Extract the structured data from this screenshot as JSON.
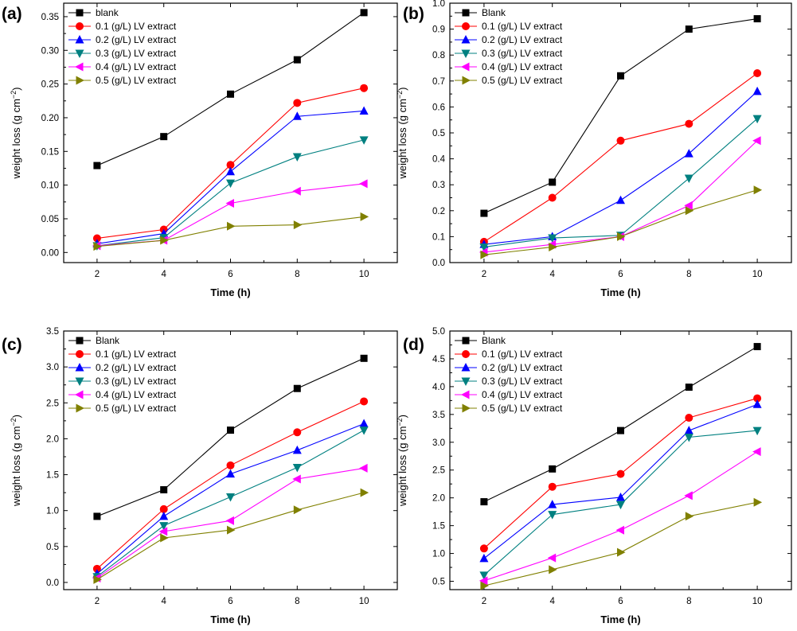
{
  "figure": {
    "panels": [
      "(a)",
      "(b)",
      "(c)",
      "(d)"
    ]
  },
  "chart_data": [
    {
      "type": "line",
      "panel_label": "(a)",
      "xlabel": "Time (h)",
      "ylabel_main": "weight loss (g cm",
      "ylabel_sup": "−2",
      "ylabel_close": ")",
      "x": [
        2,
        4,
        6,
        8,
        10
      ],
      "xticks": [
        "2",
        "4",
        "6",
        "8",
        "10"
      ],
      "xlim": [
        1,
        11
      ],
      "ylim": [
        -0.015,
        0.37
      ],
      "yticks": [
        "0.00",
        "0.05",
        "0.10",
        "0.15",
        "0.20",
        "0.25",
        "0.30",
        "0.35"
      ],
      "legend_position": "top-left",
      "series": [
        {
          "name": "blank",
          "marker": "square",
          "color": "#000000",
          "values": [
            0.129,
            0.172,
            0.235,
            0.286,
            0.356
          ]
        },
        {
          "name": "0.1 (g/L) LV extract",
          "marker": "circle",
          "color": "#ff0000",
          "values": [
            0.021,
            0.034,
            0.13,
            0.222,
            0.244
          ]
        },
        {
          "name": "0.2 (g/L) LV extract",
          "marker": "triangle-up",
          "color": "#0000ff",
          "values": [
            0.013,
            0.028,
            0.12,
            0.202,
            0.21
          ]
        },
        {
          "name": "0.3 (g/L) LV extract",
          "marker": "triangle-down",
          "color": "#008080",
          "values": [
            0.01,
            0.022,
            0.103,
            0.142,
            0.167
          ]
        },
        {
          "name": "0.4 (g/L) LV extract",
          "marker": "triangle-left",
          "color": "#ff00ff",
          "values": [
            0.01,
            0.018,
            0.073,
            0.091,
            0.102
          ]
        },
        {
          "name": "0.5 (g/L) LV extract",
          "marker": "triangle-right",
          "color": "#808000",
          "values": [
            0.009,
            0.018,
            0.039,
            0.041,
            0.053
          ]
        }
      ]
    },
    {
      "type": "line",
      "panel_label": "(b)",
      "xlabel": "Time (h)",
      "ylabel_main": "weight loss (g cm",
      "ylabel_sup": "−2",
      "ylabel_close": ")",
      "x": [
        2,
        4,
        6,
        8,
        10
      ],
      "xticks": [
        "2",
        "4",
        "6",
        "8",
        "10"
      ],
      "xlim": [
        1,
        11
      ],
      "ylim": [
        0,
        1.0
      ],
      "yticks": [
        "0.0",
        "0.1",
        "0.2",
        "0.3",
        "0.4",
        "0.5",
        "0.6",
        "0.7",
        "0.8",
        "0.9",
        "1.0"
      ],
      "legend_position": "top-left",
      "series": [
        {
          "name": "Blank",
          "marker": "square",
          "color": "#000000",
          "values": [
            0.19,
            0.31,
            0.72,
            0.9,
            0.94
          ]
        },
        {
          "name": "0.1 (g/L) LV extract",
          "marker": "circle",
          "color": "#ff0000",
          "values": [
            0.08,
            0.25,
            0.47,
            0.535,
            0.73
          ]
        },
        {
          "name": "0.2 (g/L) LV extract",
          "marker": "triangle-up",
          "color": "#0000ff",
          "values": [
            0.07,
            0.1,
            0.24,
            0.42,
            0.66
          ]
        },
        {
          "name": "0.3 (g/L) LV extract",
          "marker": "triangle-down",
          "color": "#008080",
          "values": [
            0.06,
            0.095,
            0.105,
            0.325,
            0.555
          ]
        },
        {
          "name": "0.4 (g/L) LV extract",
          "marker": "triangle-left",
          "color": "#ff00ff",
          "values": [
            0.04,
            0.07,
            0.1,
            0.22,
            0.47
          ]
        },
        {
          "name": "0.5 (g/L) LV extract",
          "marker": "triangle-right",
          "color": "#808000",
          "values": [
            0.03,
            0.06,
            0.1,
            0.2,
            0.28
          ]
        }
      ]
    },
    {
      "type": "line",
      "panel_label": "(c)",
      "xlabel": "Time (h)",
      "ylabel_main": "weight loss (g cm",
      "ylabel_sup": "−2",
      "ylabel_close": ")",
      "x": [
        2,
        4,
        6,
        8,
        10
      ],
      "xticks": [
        "2",
        "4",
        "6",
        "8",
        "10"
      ],
      "xlim": [
        1,
        11
      ],
      "ylim": [
        -0.1,
        3.5
      ],
      "yticks": [
        "0.0",
        "0.5",
        "1.0",
        "1.5",
        "2.0",
        "2.5",
        "3.0",
        "3.5"
      ],
      "legend_position": "top-left",
      "series": [
        {
          "name": "Blank",
          "marker": "square",
          "color": "#000000",
          "values": [
            0.92,
            1.29,
            2.12,
            2.7,
            3.12
          ]
        },
        {
          "name": "0.1 (g/L) LV extract",
          "marker": "circle",
          "color": "#ff0000",
          "values": [
            0.19,
            1.02,
            1.63,
            2.09,
            2.52
          ]
        },
        {
          "name": "0.2 (g/L) LV extract",
          "marker": "triangle-up",
          "color": "#0000ff",
          "values": [
            0.12,
            0.92,
            1.51,
            1.84,
            2.21
          ]
        },
        {
          "name": "0.3 (g/L) LV extract",
          "marker": "triangle-down",
          "color": "#008080",
          "values": [
            0.08,
            0.79,
            1.19,
            1.6,
            2.12
          ]
        },
        {
          "name": "0.4 (g/L) LV extract",
          "marker": "triangle-left",
          "color": "#ff00ff",
          "values": [
            0.06,
            0.71,
            0.86,
            1.44,
            1.59
          ]
        },
        {
          "name": "0.5 (g/L) LV extract",
          "marker": "triangle-right",
          "color": "#808000",
          "values": [
            0.04,
            0.62,
            0.73,
            1.01,
            1.25
          ]
        }
      ]
    },
    {
      "type": "line",
      "panel_label": "(d)",
      "xlabel": "Time (h)",
      "ylabel_main": "weight loss (g cm",
      "ylabel_sup": "−2",
      "ylabel_close": ")",
      "x": [
        2,
        4,
        6,
        8,
        10
      ],
      "xticks": [
        "2",
        "4",
        "6",
        "8",
        "10"
      ],
      "xlim": [
        1,
        11
      ],
      "ylim": [
        0.35,
        5.0
      ],
      "yticks": [
        "0.5",
        "1.0",
        "1.5",
        "2.0",
        "2.5",
        "3.0",
        "3.5",
        "4.0",
        "4.5",
        "5.0"
      ],
      "legend_position": "top-left",
      "series": [
        {
          "name": "Blank",
          "marker": "square",
          "color": "#000000",
          "values": [
            1.93,
            2.52,
            3.21,
            3.99,
            4.72
          ]
        },
        {
          "name": "0.1 (g/L) LV extract",
          "marker": "circle",
          "color": "#ff0000",
          "values": [
            1.09,
            2.2,
            2.43,
            3.44,
            3.79
          ]
        },
        {
          "name": "0.2 (g/L) LV extract",
          "marker": "triangle-up",
          "color": "#0000ff",
          "values": [
            0.91,
            1.88,
            2.01,
            3.21,
            3.68
          ]
        },
        {
          "name": "0.3 (g/L) LV extract",
          "marker": "triangle-down",
          "color": "#008080",
          "values": [
            0.61,
            1.7,
            1.88,
            3.09,
            3.21
          ]
        },
        {
          "name": "0.4 (g/L) LV extract",
          "marker": "triangle-left",
          "color": "#ff00ff",
          "values": [
            0.51,
            0.92,
            1.42,
            2.04,
            2.83
          ]
        },
        {
          "name": "0.5 (g/L) LV extract",
          "marker": "triangle-right",
          "color": "#808000",
          "values": [
            0.42,
            0.71,
            1.02,
            1.67,
            1.92
          ]
        }
      ]
    }
  ]
}
